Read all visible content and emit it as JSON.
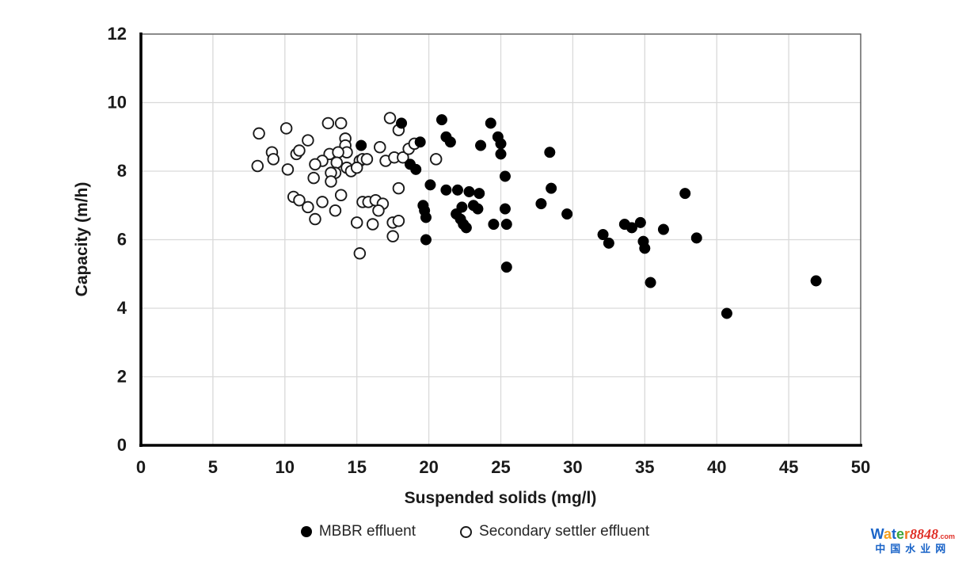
{
  "chart_data": {
    "type": "scatter",
    "title": "",
    "xlabel": "Suspended solids (mg/l)",
    "ylabel": "Capacity (m/h)",
    "xlim": [
      0,
      50
    ],
    "ylim": [
      0,
      12
    ],
    "xticks": [
      0,
      5,
      10,
      15,
      20,
      25,
      30,
      35,
      40,
      45,
      50
    ],
    "yticks": [
      0,
      2,
      4,
      6,
      8,
      10,
      12
    ],
    "grid": true,
    "gridline_color": "#d9d9d9",
    "axis_color": "#000000",
    "legend_position": "bottom",
    "series": [
      {
        "name": "MBBR effluent",
        "marker": "filled-circle",
        "color": "#000000",
        "points": [
          [
            18.1,
            9.4
          ],
          [
            20.9,
            9.5
          ],
          [
            24.3,
            9.4
          ],
          [
            21.2,
            9.0
          ],
          [
            21.5,
            8.85
          ],
          [
            24.8,
            9.0
          ],
          [
            25.0,
            8.8
          ],
          [
            25.0,
            8.5
          ],
          [
            23.6,
            8.75
          ],
          [
            19.4,
            8.85
          ],
          [
            15.3,
            8.75
          ],
          [
            28.4,
            8.55
          ],
          [
            18.7,
            8.2
          ],
          [
            19.1,
            8.05
          ],
          [
            20.1,
            7.6
          ],
          [
            21.2,
            7.45
          ],
          [
            22.0,
            7.45
          ],
          [
            22.8,
            7.4
          ],
          [
            23.5,
            7.35
          ],
          [
            25.3,
            7.85
          ],
          [
            28.5,
            7.5
          ],
          [
            27.8,
            7.05
          ],
          [
            29.6,
            6.75
          ],
          [
            19.6,
            7.0
          ],
          [
            19.7,
            6.85
          ],
          [
            19.8,
            6.65
          ],
          [
            19.8,
            6.0
          ],
          [
            22.3,
            6.95
          ],
          [
            23.1,
            7.0
          ],
          [
            23.4,
            6.9
          ],
          [
            21.9,
            6.75
          ],
          [
            22.2,
            6.6
          ],
          [
            22.4,
            6.45
          ],
          [
            22.6,
            6.35
          ],
          [
            25.3,
            6.9
          ],
          [
            24.5,
            6.45
          ],
          [
            25.4,
            6.45
          ],
          [
            25.4,
            5.2
          ],
          [
            32.1,
            6.15
          ],
          [
            32.5,
            5.9
          ],
          [
            33.6,
            6.45
          ],
          [
            34.1,
            6.35
          ],
          [
            34.7,
            6.5
          ],
          [
            34.9,
            5.95
          ],
          [
            35.0,
            5.75
          ],
          [
            36.3,
            6.3
          ],
          [
            38.6,
            6.05
          ],
          [
            37.8,
            7.35
          ],
          [
            35.4,
            4.75
          ],
          [
            40.7,
            3.85
          ],
          [
            46.9,
            4.8
          ]
        ]
      },
      {
        "name": "Secondary settler effluent",
        "marker": "open-circle",
        "color": "#000000",
        "points": [
          [
            8.2,
            9.1
          ],
          [
            10.1,
            9.25
          ],
          [
            8.1,
            8.15
          ],
          [
            9.1,
            8.55
          ],
          [
            9.2,
            8.35
          ],
          [
            11.6,
            8.9
          ],
          [
            10.8,
            8.5
          ],
          [
            11.0,
            8.6
          ],
          [
            10.2,
            8.05
          ],
          [
            13.0,
            9.4
          ],
          [
            13.9,
            9.4
          ],
          [
            14.2,
            8.95
          ],
          [
            14.2,
            8.75
          ],
          [
            14.3,
            8.55
          ],
          [
            13.1,
            8.5
          ],
          [
            13.7,
            8.55
          ],
          [
            12.6,
            8.3
          ],
          [
            12.1,
            8.2
          ],
          [
            13.6,
            8.25
          ],
          [
            14.3,
            8.1
          ],
          [
            13.5,
            7.95
          ],
          [
            13.2,
            7.95
          ],
          [
            12.0,
            7.8
          ],
          [
            13.2,
            7.7
          ],
          [
            14.6,
            8.0
          ],
          [
            15.2,
            8.3
          ],
          [
            15.4,
            8.35
          ],
          [
            15.7,
            8.35
          ],
          [
            15.0,
            8.1
          ],
          [
            16.6,
            8.7
          ],
          [
            17.3,
            9.55
          ],
          [
            17.9,
            9.2
          ],
          [
            17.0,
            8.3
          ],
          [
            17.6,
            8.4
          ],
          [
            18.2,
            8.4
          ],
          [
            18.6,
            8.65
          ],
          [
            19.0,
            8.8
          ],
          [
            20.5,
            8.35
          ],
          [
            17.9,
            7.5
          ],
          [
            10.6,
            7.25
          ],
          [
            11.0,
            7.15
          ],
          [
            11.6,
            6.95
          ],
          [
            12.6,
            7.1
          ],
          [
            13.9,
            7.3
          ],
          [
            13.5,
            6.85
          ],
          [
            12.1,
            6.6
          ],
          [
            15.4,
            7.1
          ],
          [
            15.8,
            7.1
          ],
          [
            16.3,
            7.15
          ],
          [
            16.8,
            7.05
          ],
          [
            16.5,
            6.85
          ],
          [
            15.0,
            6.5
          ],
          [
            16.1,
            6.45
          ],
          [
            17.5,
            6.5
          ],
          [
            17.9,
            6.55
          ],
          [
            17.5,
            6.1
          ],
          [
            15.2,
            5.6
          ]
        ]
      }
    ]
  },
  "legend": {
    "items": [
      {
        "label": "MBBR effluent",
        "marker": "filled-circle"
      },
      {
        "label": "Secondary settler effluent",
        "marker": "open-circle"
      }
    ]
  },
  "watermark": {
    "letters": [
      {
        "ch": "W",
        "color": "#1a64c8"
      },
      {
        "ch": "a",
        "color": "#f5a01e"
      },
      {
        "ch": "t",
        "color": "#1a64c8"
      },
      {
        "ch": "e",
        "color": "#3aa53a"
      },
      {
        "ch": "r",
        "color": "#f07820"
      }
    ],
    "number": "8848",
    "number_color": "#e03028",
    "suffix": ".com",
    "suffix_color": "#e03028",
    "subtitle": "中国水业网",
    "subtitle_color": "#1a64c8"
  }
}
